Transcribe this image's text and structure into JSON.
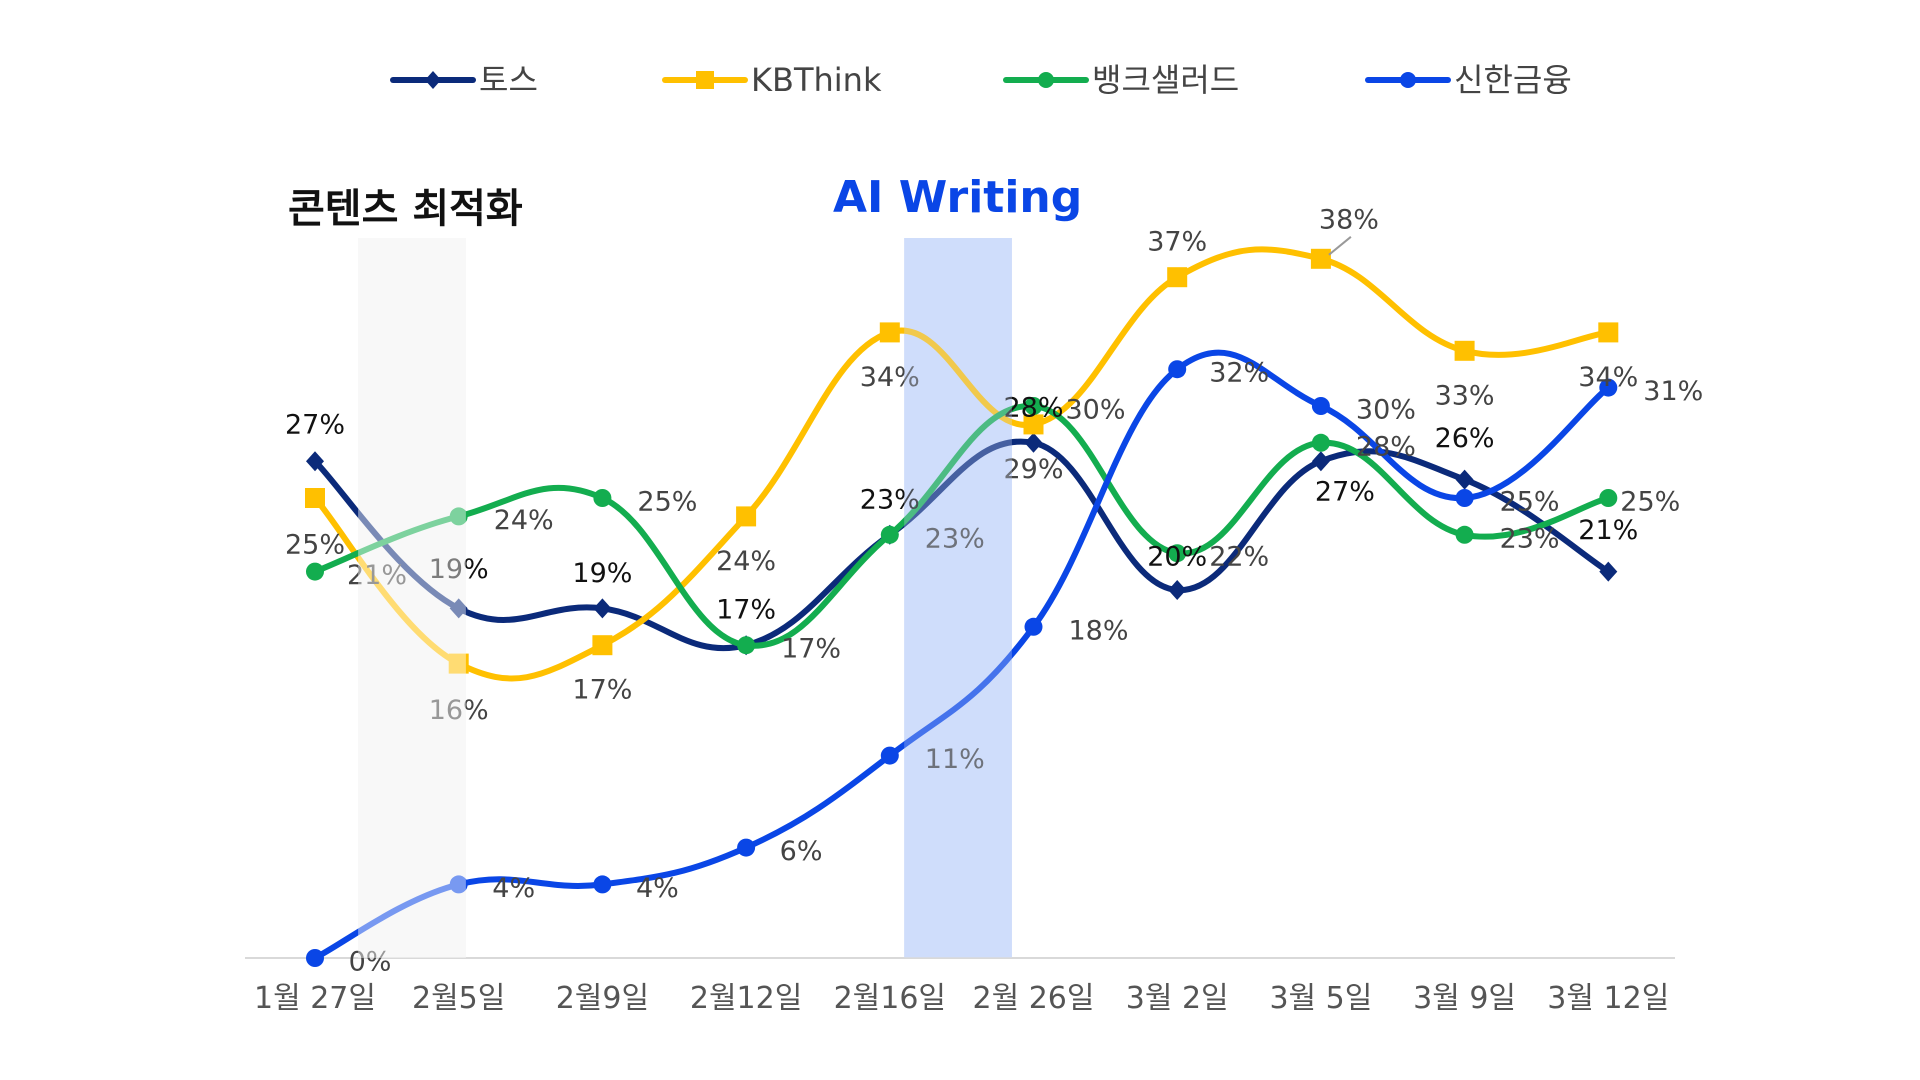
{
  "chart_data": {
    "type": "line",
    "categories": [
      "1월 27일",
      "2월5일",
      "2월9일",
      "2월12일",
      "2월16일",
      "2월 26일",
      "3월 2일",
      "3월 5일",
      "3월 9일",
      "3월 12일"
    ],
    "ylim": [
      0,
      45
    ],
    "grid": false,
    "legend_position": "top",
    "series": [
      {
        "name": "토스",
        "color": "#0B2A7A",
        "marker": "diamond",
        "values": [
          27,
          19,
          19,
          17,
          23,
          28,
          20,
          27,
          26,
          21
        ],
        "labels": [
          "27%",
          "19%",
          "19%",
          "17%",
          "23%",
          "28%",
          "20%",
          "27%",
          "26%",
          "21%"
        ]
      },
      {
        "name": "KBThink",
        "color": "#FFC000",
        "marker": "square",
        "values": [
          25,
          16,
          17,
          24,
          34,
          29,
          37,
          38,
          33,
          34
        ],
        "labels": [
          "25%",
          "16%",
          "17%",
          "24%",
          "34%",
          "29%",
          "37%",
          "38%",
          "33%",
          "34%"
        ]
      },
      {
        "name": "뱅크샐러드",
        "color": "#13AD4F",
        "marker": "circle",
        "values": [
          21,
          24,
          25,
          17,
          23,
          30,
          22,
          28,
          23,
          25
        ],
        "labels": [
          "21%",
          "24%",
          "25%",
          "17%",
          "23%",
          "30%",
          "22%",
          "28%",
          "23%",
          "25%"
        ]
      },
      {
        "name": "신한금융",
        "color": "#0A46E6",
        "marker": "circle",
        "values": [
          0,
          4,
          4,
          6,
          11,
          18,
          32,
          30,
          25,
          31
        ],
        "labels": [
          "0%",
          "4%",
          "4%",
          "6%",
          "11%",
          "18%",
          "32%",
          "30%",
          "25%",
          "31%"
        ]
      }
    ],
    "annotations": [
      {
        "text": "콘텐츠 최적화",
        "color": "#111111",
        "from": 0.3,
        "to": 1.05,
        "band_color": "#F2F2F2"
      },
      {
        "text": "AI Writing",
        "color": "#0A46E6",
        "from": 4.1,
        "to": 4.85,
        "band_color": "#CFDDFB"
      }
    ]
  }
}
